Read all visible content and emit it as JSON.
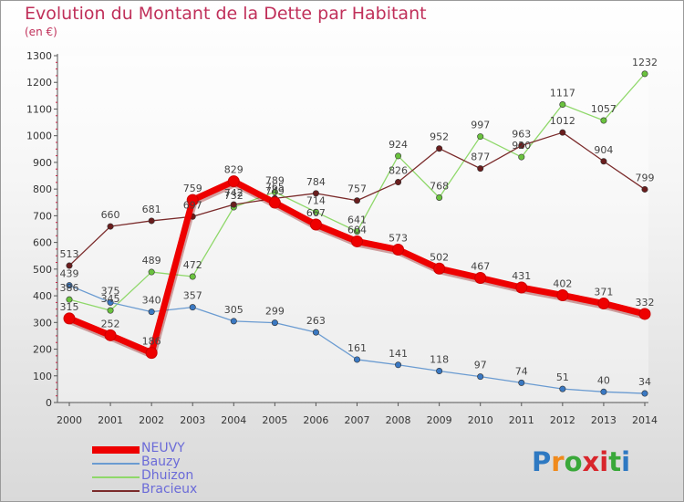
{
  "header": {
    "title": "Evolution du Montant de la Dette par Habitant",
    "subtitle": "(en €)"
  },
  "logo": {
    "text": "Proxiti",
    "colors": [
      "#2e79c2",
      "#f08a1c",
      "#3aa83a",
      "#d8262c",
      "#d8262c",
      "#3aa83a",
      "#2e79c2"
    ]
  },
  "chart_data": {
    "type": "line",
    "title": "Evolution du Montant de la Dette par Habitant",
    "subtitle": "(en €)",
    "x": [
      "2000",
      "2001",
      "2002",
      "2003",
      "2004",
      "2005",
      "2006",
      "2007",
      "2008",
      "2009",
      "2010",
      "2011",
      "2012",
      "2013",
      "2014"
    ],
    "ylim": [
      0,
      1300
    ],
    "yticks": [
      "0",
      "100",
      "200",
      "300",
      "400",
      "500",
      "600",
      "700",
      "800",
      "900",
      "1000",
      "1100",
      "1200",
      "1300"
    ],
    "grid": false,
    "legend_position": "bottom-left",
    "series": [
      {
        "name": "NEUVY",
        "color": "#ee0000",
        "marker": "#ee0000",
        "width": 7,
        "values": [
          315,
          252,
          186,
          759,
          829,
          749,
          667,
          604,
          573,
          502,
          467,
          431,
          402,
          371,
          332
        ],
        "labels": [
          "315",
          "252",
          "186",
          "759",
          "829",
          "749",
          "667",
          "604",
          "573",
          "502",
          "467",
          "431",
          "402",
          "371",
          "332"
        ]
      },
      {
        "name": "Bauzy",
        "color": "#6a9bd1",
        "marker": "#3a78c2",
        "width": 1.3,
        "values": [
          439,
          375,
          340,
          357,
          305,
          299,
          263,
          161,
          141,
          118,
          97,
          74,
          51,
          40,
          34
        ],
        "labels": [
          "439",
          "375",
          "340",
          "357",
          "305",
          "299",
          "263",
          "161",
          "141",
          "118",
          "97",
          "74",
          "51",
          "40",
          "34"
        ]
      },
      {
        "name": "Dhuizon",
        "color": "#8fd86a",
        "marker": "#6ac23e",
        "width": 1.3,
        "values": [
          386,
          345,
          489,
          472,
          732,
          789,
          714,
          641,
          924,
          768,
          997,
          920,
          1117,
          1057,
          1232
        ],
        "labels": [
          "386",
          "345",
          "489",
          "472",
          "732",
          "789",
          "714",
          "641",
          "924",
          "768",
          "997",
          "920",
          "1117",
          "1057",
          "1232"
        ]
      },
      {
        "name": "Bracieux",
        "color": "#7a2a2a",
        "marker": "#6a1e1e",
        "width": 1.3,
        "values": [
          513,
          660,
          681,
          697,
          742,
          765,
          784,
          757,
          826,
          952,
          877,
          963,
          1012,
          904,
          799
        ],
        "labels": [
          "513",
          "660",
          "681",
          "697",
          "742",
          "765",
          "784",
          "757",
          "826",
          "952",
          "877",
          "963",
          "1012",
          "904",
          "799"
        ]
      }
    ]
  }
}
